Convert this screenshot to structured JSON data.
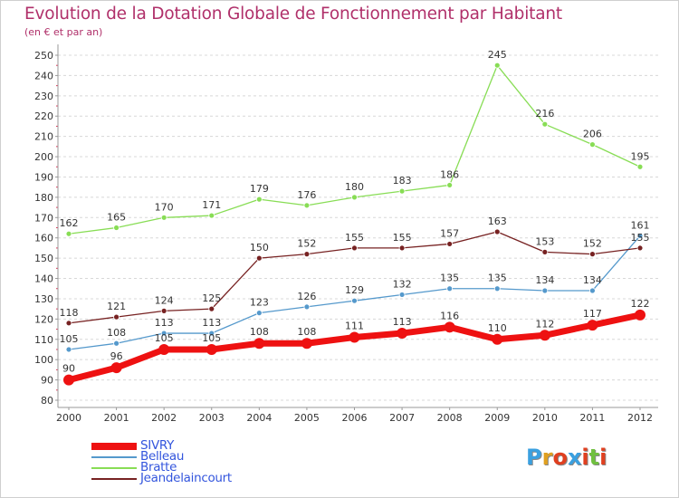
{
  "header": {
    "title": "Evolution de la Dotation Globale de Fonctionnement par Habitant",
    "subtitle": "(en € et par an)"
  },
  "logo": {
    "text": "Proxiti",
    "letter_colors": [
      "#3aa0e0",
      "#e0a020",
      "#e04020",
      "#3aa0e0",
      "#e04020",
      "#70c040",
      "#e04020"
    ]
  },
  "chart_data": {
    "type": "line",
    "x": [
      2000,
      2001,
      2002,
      2003,
      2004,
      2005,
      2006,
      2007,
      2008,
      2009,
      2010,
      2011,
      2012
    ],
    "ylim": [
      80,
      250
    ],
    "yticks": [
      80,
      90,
      100,
      110,
      120,
      130,
      140,
      150,
      160,
      170,
      180,
      190,
      200,
      210,
      220,
      230,
      240,
      250
    ],
    "grid": "horizontal dashed",
    "legend_position": "bottom-left",
    "series": [
      {
        "name": "SIVRY",
        "color": "#ee1111",
        "emphasis": true,
        "values": [
          90,
          96,
          105,
          105,
          108,
          108,
          111,
          113,
          116,
          110,
          112,
          117,
          122
        ]
      },
      {
        "name": "Belleau",
        "color": "#5599cc",
        "emphasis": false,
        "values": [
          105,
          108,
          113,
          113,
          123,
          126,
          129,
          132,
          135,
          135,
          134,
          134,
          161
        ]
      },
      {
        "name": "Bratte",
        "color": "#88dd55",
        "emphasis": false,
        "values": [
          162,
          165,
          170,
          171,
          179,
          176,
          180,
          183,
          186,
          245,
          216,
          206,
          195
        ]
      },
      {
        "name": "Jeandelaincourt",
        "color": "#772222",
        "emphasis": false,
        "values": [
          118,
          121,
          124,
          125,
          150,
          152,
          155,
          155,
          157,
          163,
          153,
          152,
          155
        ]
      }
    ]
  }
}
